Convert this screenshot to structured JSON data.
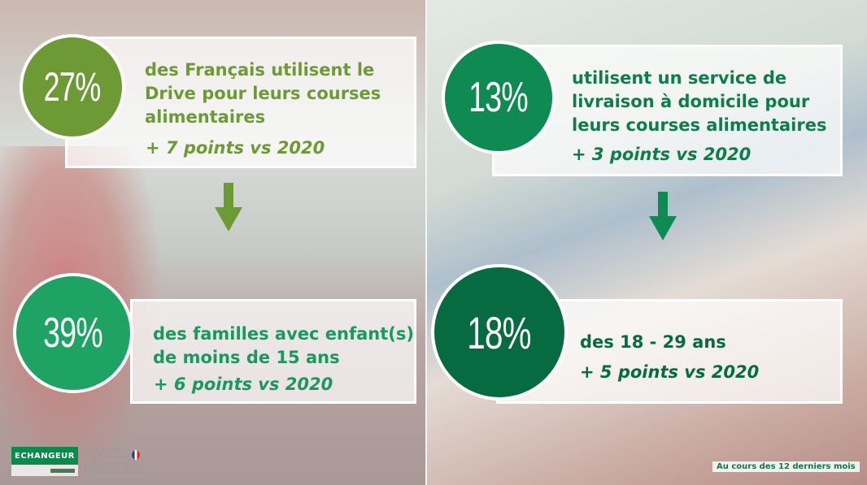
{
  "stats": [
    {
      "percent": "27%",
      "text": "des Français utilisent le Drive pour leurs courses alimentaires",
      "lines": [
        "des Français utilisent le",
        "Drive pour leurs courses",
        "alimentaires"
      ],
      "delta": "+ 7 points vs 2020",
      "color": "#6e9a35"
    },
    {
      "percent": "39%",
      "lines": [
        "des familles avec enfant(s)",
        "de moins de 15 ans"
      ],
      "delta": "+ 6 points vs 2020",
      "color": "#1ea365"
    },
    {
      "percent": "13%",
      "lines": [
        "utilisent un service de",
        "livraison à domicile pour",
        "leurs courses alimentaires"
      ],
      "delta": "+ 3 points vs 2020",
      "color": "#0f8a52"
    },
    {
      "percent": "18%",
      "lines": [
        "des 18 - 29 ans"
      ],
      "delta": "+ 5 points vs 2020",
      "color": "#066b40"
    }
  ],
  "arrows": [
    {
      "icon": "arrow-down-icon",
      "color": "#6e9a35"
    },
    {
      "icon": "arrow-down-icon",
      "color": "#0f8a52"
    }
  ],
  "footer": {
    "brand": "ECHANGEUR",
    "panel_line1": "ACCESS",
    "panel_line2": "PANEL 2022",
    "note": "Au cours des 12 derniers mois"
  }
}
